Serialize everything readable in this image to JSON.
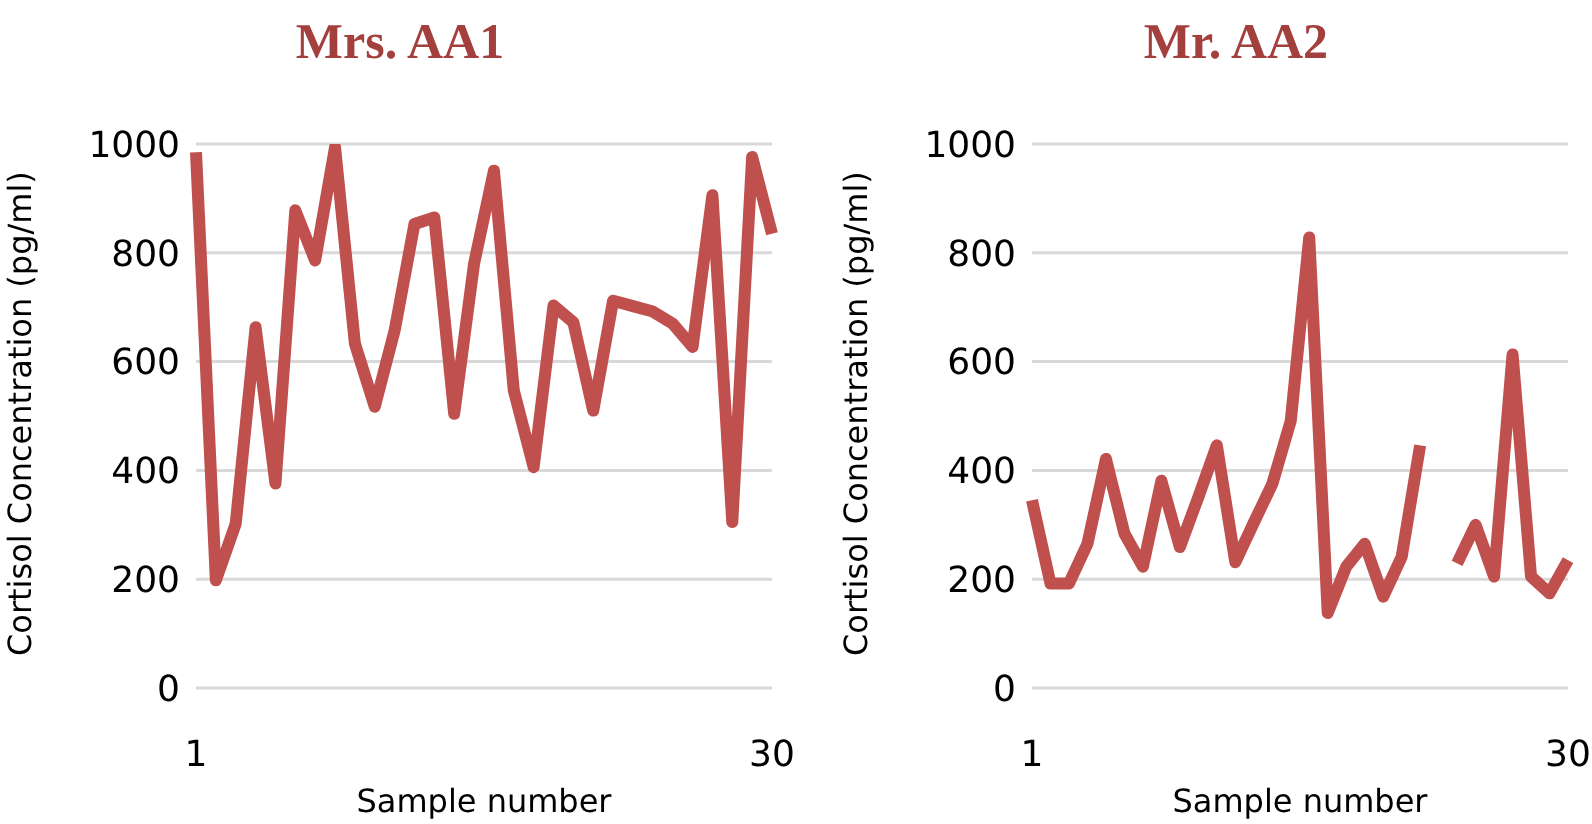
{
  "chart_data": [
    {
      "type": "line",
      "title": "Mrs. AA1",
      "xlabel": "Sample number",
      "ylabel": "Cortisol Concentration (pg/ml)",
      "categories": [
        "1",
        null,
        null,
        null,
        null,
        null,
        null,
        null,
        null,
        null,
        null,
        null,
        null,
        null,
        null,
        null,
        null,
        null,
        null,
        null,
        null,
        null,
        null,
        null,
        null,
        null,
        null,
        null,
        null,
        "30"
      ],
      "series": [
        {
          "color": "#c0504d",
          "values": [
            985,
            198,
            302,
            663,
            376,
            878,
            786,
            994,
            633,
            517,
            657,
            853,
            865,
            504,
            780,
            951,
            547,
            406,
            703,
            672,
            510,
            712,
            702,
            692,
            670,
            627,
            906,
            305,
            976,
            835
          ]
        }
      ],
      "ylim": [
        0,
        1000
      ],
      "yticks": [
        0,
        200,
        400,
        600,
        800,
        1000
      ],
      "grid": "y",
      "legend": false,
      "marker": "none",
      "line_style": "solid"
    },
    {
      "type": "line",
      "title": "Mr. AA2",
      "xlabel": "Sample number",
      "ylabel": "Cortisol Concentration (pg/ml)",
      "categories": [
        "1",
        null,
        null,
        null,
        null,
        null,
        null,
        null,
        null,
        null,
        null,
        null,
        null,
        null,
        null,
        null,
        null,
        null,
        null,
        null,
        null,
        null,
        null,
        null,
        null,
        null,
        null,
        null,
        null,
        "30"
      ],
      "series": [
        {
          "color": "#c0504d",
          "values": [
            345,
            192,
            192,
            265,
            421,
            284,
            223,
            381,
            259,
            351,
            446,
            231,
            304,
            375,
            491,
            828,
            138,
            223,
            265,
            168,
            241,
            446,
            null,
            229,
            300,
            205,
            613,
            205,
            174,
            235
          ]
        }
      ],
      "ylim": [
        0,
        1000
      ],
      "yticks": [
        0,
        200,
        400,
        600,
        800,
        1000
      ],
      "grid": "y",
      "legend": false,
      "marker": "none",
      "line_style": "solid"
    }
  ]
}
